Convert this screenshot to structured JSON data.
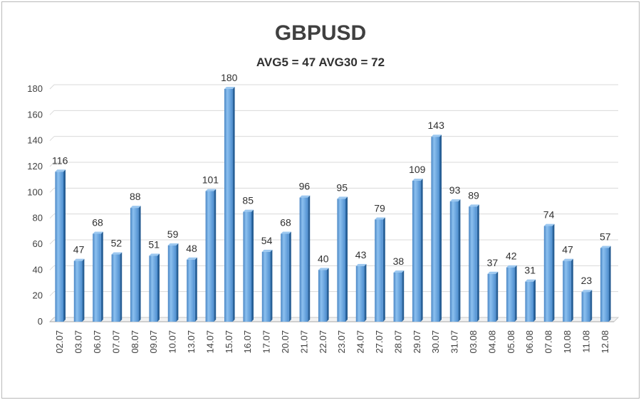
{
  "chart_data": {
    "type": "bar",
    "title": "GBPUSD",
    "subtitle": "AVG5 = 47 AVG30 = 72",
    "xlabel": "",
    "ylabel": "",
    "categories": [
      "02.07",
      "03.07",
      "06.07",
      "07.07",
      "08.07",
      "09.07",
      "10.07",
      "13.07",
      "14.07",
      "15.07",
      "16.07",
      "17.07",
      "20.07",
      "21.07",
      "22.07",
      "23.07",
      "24.07",
      "27.07",
      "28.07",
      "29.07",
      "30.07",
      "31.07",
      "03.08",
      "04.08",
      "05.08",
      "06.08",
      "07.08",
      "10.08",
      "11.08",
      "12.08"
    ],
    "values": [
      116,
      47,
      68,
      52,
      88,
      51,
      59,
      48,
      101,
      180,
      85,
      54,
      68,
      96,
      40,
      95,
      43,
      79,
      38,
      109,
      143,
      93,
      89,
      37,
      42,
      31,
      74,
      47,
      23,
      57
    ],
    "ylim": [
      0,
      180
    ],
    "yticks": [
      0,
      20,
      40,
      60,
      80,
      100,
      120,
      140,
      160,
      180
    ],
    "grid": true,
    "legend": "none",
    "bar_color": "#5b9bd5",
    "bar_dark_color": "#2e6aa8",
    "data_labels": true
  }
}
